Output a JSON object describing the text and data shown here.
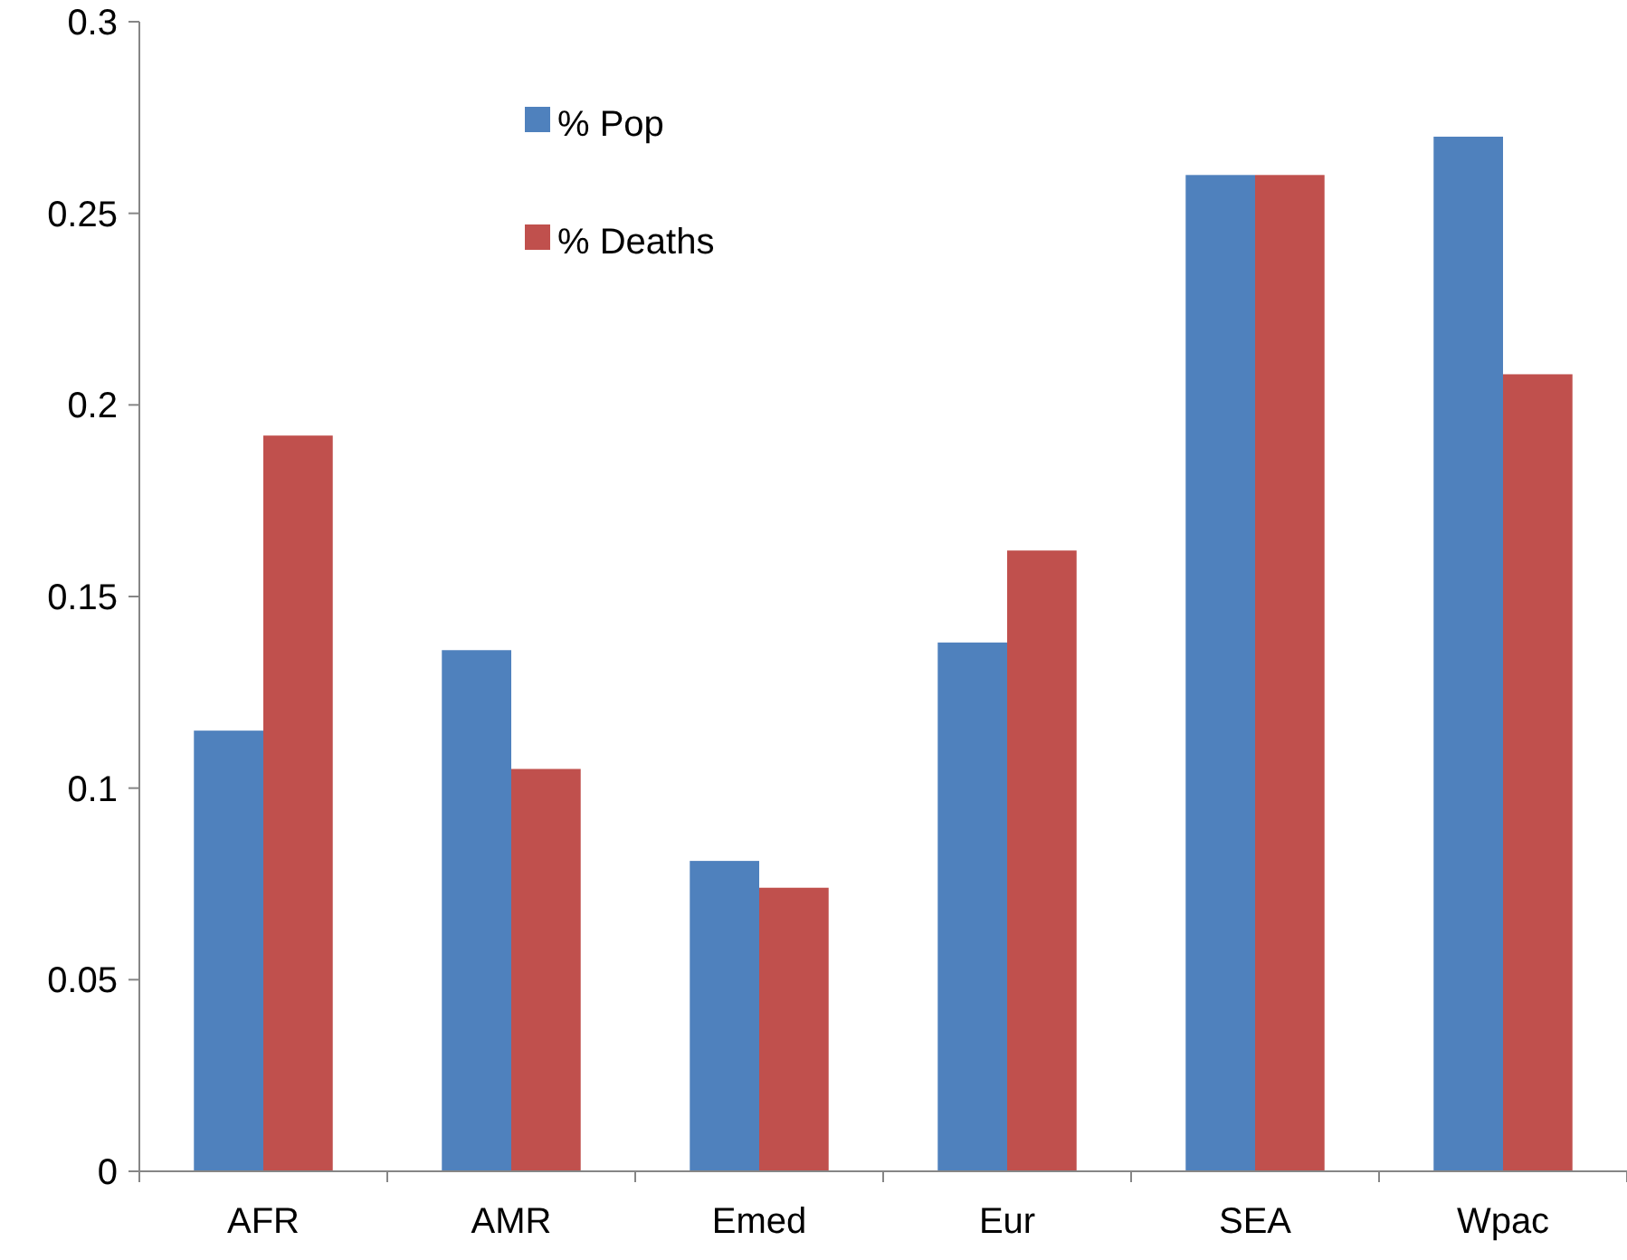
{
  "chart_data": {
    "type": "bar",
    "categories": [
      "AFR",
      "AMR",
      "Emed",
      "Eur",
      "SEA",
      "Wpac"
    ],
    "series": [
      {
        "name": "% Pop",
        "color": "#4f81bd",
        "values": [
          0.115,
          0.136,
          0.081,
          0.138,
          0.26,
          0.27
        ]
      },
      {
        "name": "% Deaths",
        "color": "#c0504d",
        "values": [
          0.192,
          0.105,
          0.074,
          0.162,
          0.26,
          0.208
        ]
      }
    ],
    "ylim": [
      0,
      0.3
    ],
    "yticks": [
      0,
      0.05,
      0.1,
      0.15,
      0.2,
      0.25,
      0.3
    ],
    "grid": false,
    "legend": "top left"
  }
}
